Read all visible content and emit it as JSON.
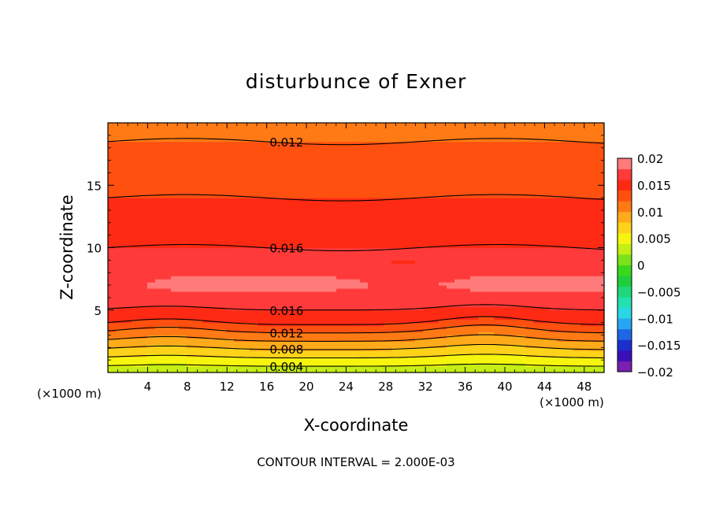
{
  "chart_data": {
    "type": "heatmap",
    "title": "disturbunce of Exner",
    "xlabel": "X-coordinate",
    "ylabel": "Z-coordinate",
    "x_unit": "(×1000 m)",
    "x_unit_right": "(×1000 m)",
    "xlim": [
      0,
      50
    ],
    "ylim": [
      0,
      20
    ],
    "x_ticks": [
      4,
      8,
      12,
      16,
      20,
      24,
      28,
      32,
      36,
      40,
      44,
      48
    ],
    "y_ticks": [
      5,
      10,
      15
    ],
    "footer": "CONTOUR INTERVAL = 2.000E-03",
    "colorbar": {
      "ticks": [
        "0.02",
        "0.015",
        "0.01",
        "0.005",
        "0",
        "−0.005",
        "−0.01",
        "−0.015",
        "−0.02"
      ],
      "range": [
        -0.02,
        0.02
      ],
      "colors": [
        "#7a1fb0",
        "#3a0fb8",
        "#1a2fcc",
        "#1f66e6",
        "#26a6f2",
        "#2ad6e6",
        "#22e0b0",
        "#1fd77a",
        "#1fce3c",
        "#3ad81c",
        "#7ce21a",
        "#c4ee14",
        "#f5f50f",
        "#ffd21a",
        "#ffaa1a",
        "#ff7a14",
        "#ff5010",
        "#ff2a14",
        "#ff3a3a",
        "#ff7a7a"
      ]
    },
    "contour_labels": [
      {
        "x": 18,
        "z": 18.5,
        "text": "0.012"
      },
      {
        "x": 18,
        "z": 10,
        "text": "0.016"
      },
      {
        "x": 18,
        "z": 5,
        "text": "0.016"
      },
      {
        "x": 18,
        "z": 3.2,
        "text": "0.012"
      },
      {
        "x": 18,
        "z": 1.9,
        "text": "0.008"
      },
      {
        "x": 18,
        "z": 0.5,
        "text": "0.004"
      }
    ],
    "field_profile": [
      {
        "z": 0.0,
        "v": 0.003
      },
      {
        "z": 0.5,
        "v": 0.004
      },
      {
        "z": 1.0,
        "v": 0.0055
      },
      {
        "z": 1.5,
        "v": 0.007
      },
      {
        "z": 2.0,
        "v": 0.0085
      },
      {
        "z": 2.5,
        "v": 0.01
      },
      {
        "z": 3.0,
        "v": 0.0115
      },
      {
        "z": 3.5,
        "v": 0.013
      },
      {
        "z": 4.0,
        "v": 0.0145
      },
      {
        "z": 5.0,
        "v": 0.016
      },
      {
        "z": 7.0,
        "v": 0.0185
      },
      {
        "z": 9.0,
        "v": 0.017
      },
      {
        "z": 10.0,
        "v": 0.016
      },
      {
        "z": 13.0,
        "v": 0.015
      },
      {
        "z": 14.0,
        "v": 0.014
      },
      {
        "z": 16.0,
        "v": 0.013
      },
      {
        "z": 18.5,
        "v": 0.012
      },
      {
        "z": 20.0,
        "v": 0.011
      }
    ],
    "bumps": [
      {
        "x": 6,
        "amp": 0.5
      },
      {
        "x": 38,
        "amp": 0.7
      }
    ]
  }
}
